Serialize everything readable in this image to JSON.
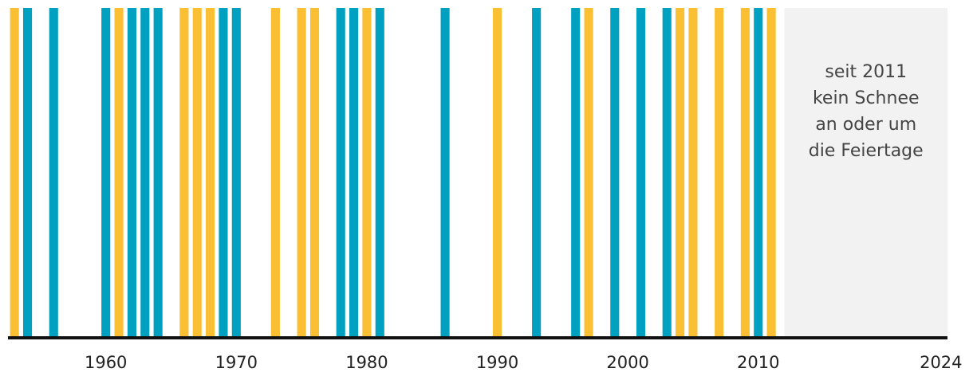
{
  "chart_data": {
    "type": "strip",
    "series": [
      {
        "color": "#fbbf33",
        "x": [
          1953,
          1961,
          1966,
          1967,
          1968,
          1973,
          1975,
          1976,
          1980,
          1990,
          1997,
          2004,
          2005,
          2007,
          2009,
          2011
        ]
      },
      {
        "color": "#00a0c0",
        "x": [
          1954,
          1956,
          1960,
          1962,
          1963,
          1964,
          1969,
          1970,
          1978,
          1979,
          1981,
          1986,
          1993,
          1996,
          1999,
          2001,
          2003,
          2010
        ]
      }
    ],
    "xlim": [
      1952.5,
      2024.5
    ],
    "xticks": [
      1960,
      1970,
      1980,
      1990,
      2000,
      2010,
      2024
    ],
    "shaded_range": [
      2012,
      2024.5
    ],
    "annotation": "seit 2011 kein Schnee an oder um die Feiertage"
  }
}
